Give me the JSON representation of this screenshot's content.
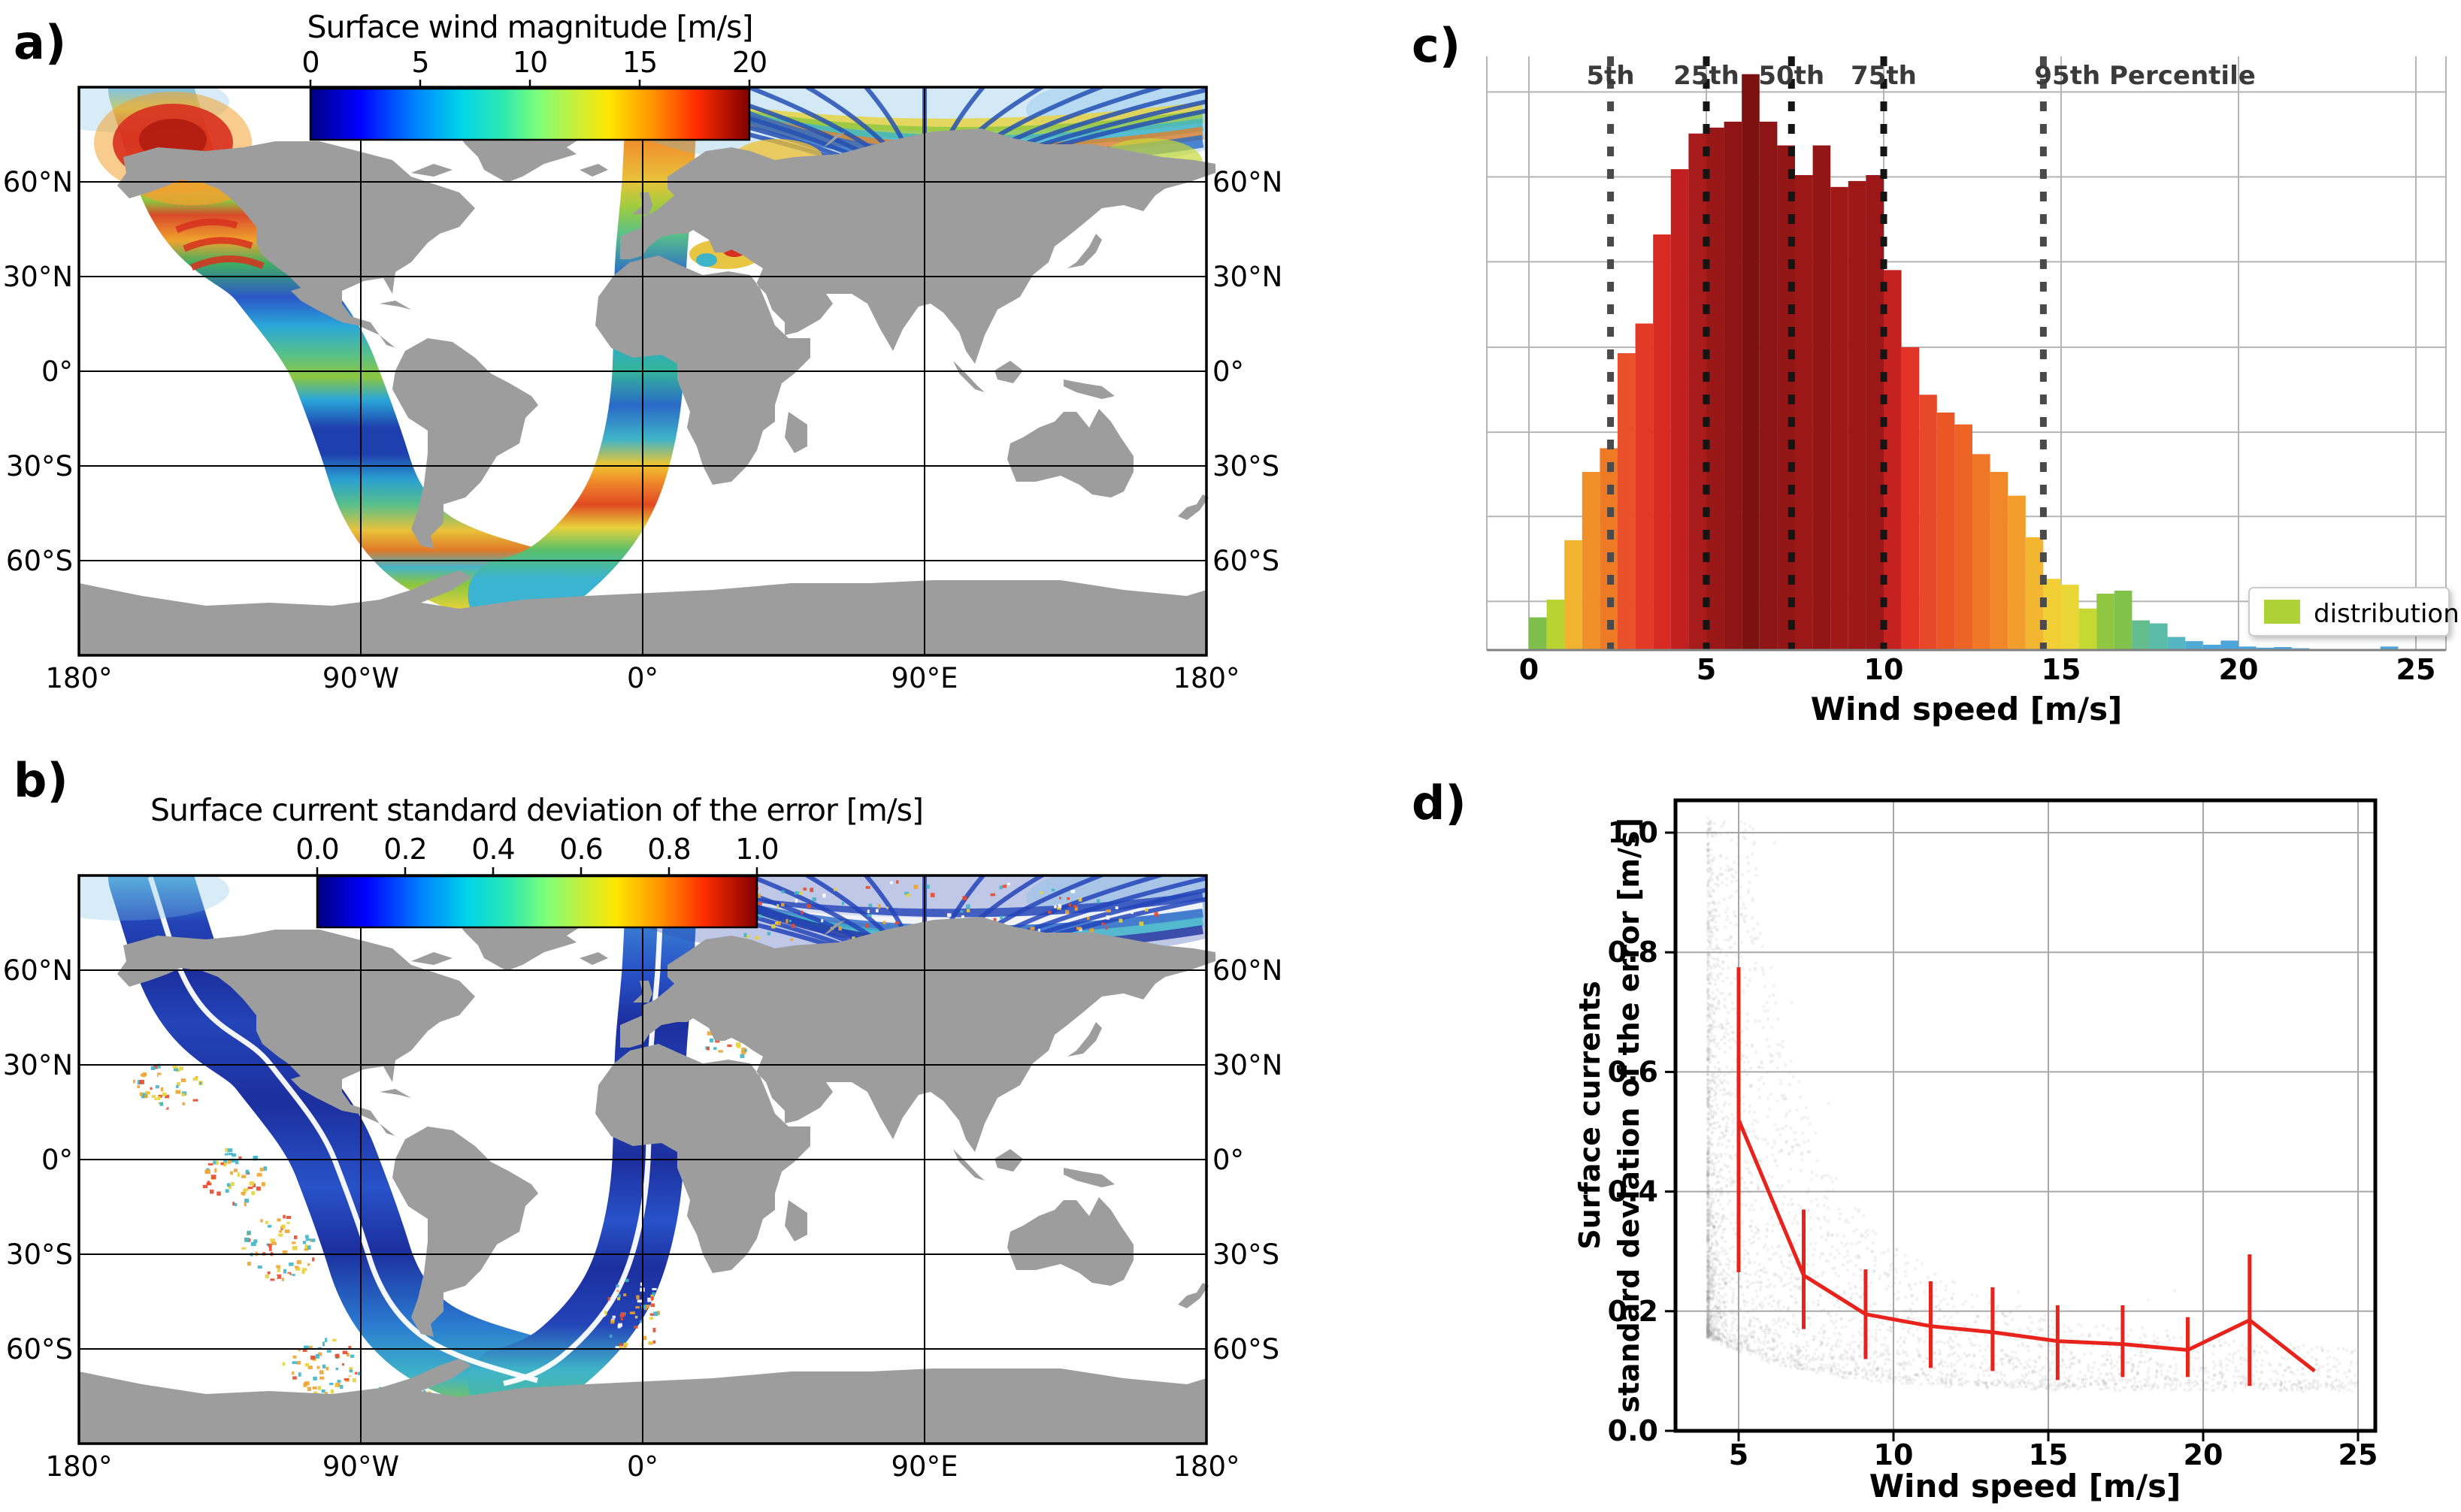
{
  "colors": {
    "land": "#9d9d9d",
    "map_grid": "#000000",
    "panel_grid": "#b5b5b5",
    "axis_gray": "#808080",
    "red_line": "#e8231c",
    "scatter": "#9a9a9a",
    "legend_swatch": "#aed136"
  },
  "panel_a": {
    "letter": "a)",
    "title": "Surface wind magnitude [m/s]",
    "colorbar_ticks": [
      "0",
      "5",
      "10",
      "15",
      "20"
    ],
    "lat_labels": [
      "60°N",
      "30°N",
      "0°",
      "30°S",
      "60°S"
    ],
    "lon_labels": [
      "180°",
      "90°W",
      "0°",
      "90°E",
      "180°"
    ]
  },
  "panel_b": {
    "letter": "b)",
    "title": "Surface current standard deviation of the error [m/s]",
    "colorbar_ticks": [
      "0.0",
      "0.2",
      "0.4",
      "0.6",
      "0.8",
      "1.0"
    ],
    "lat_labels": [
      "60°N",
      "30°N",
      "0°",
      "30°S",
      "60°S"
    ],
    "lon_labels": [
      "180°",
      "90°W",
      "0°",
      "90°E",
      "180°"
    ]
  },
  "panel_c": {
    "letter": "c)",
    "xlabel": "Wind speed [m/s]",
    "xtick_labels": [
      "0",
      "5",
      "10",
      "15",
      "20",
      "25"
    ],
    "legend_label": "distribution"
  },
  "panel_d": {
    "letter": "d)",
    "xlabel": "Wind speed [m/s]",
    "ylabel_line1": "Surface currents",
    "ylabel_line2": "standard deviation of the error [m/s]",
    "xtick_labels": [
      "5",
      "10",
      "15",
      "20",
      "25"
    ],
    "ytick_labels": [
      "0.0",
      "0.2",
      "0.4",
      "0.6",
      "0.8",
      "1.0"
    ]
  },
  "chart_data": [
    {
      "id": "panel_a_map",
      "type": "heatmap",
      "title": "Surface wind magnitude [m/s]",
      "units": "m/s",
      "colormap": "jet",
      "colorbar_range": [
        0,
        20
      ],
      "colorbar_ticks": [
        0,
        5,
        10,
        15,
        20
      ],
      "projection": "equirectangular",
      "lat_ticks": [
        "60°N",
        "30°N",
        "0°",
        "30°S",
        "60°S"
      ],
      "lon_ticks": [
        "180°",
        "90°W",
        "0°",
        "90°E",
        "180°"
      ],
      "description": "World map with gray continents; two satellite swaths (Pacific descending, Atlantic ascending) colored by surface wind magnitude, plus fan-shaped Arctic coverage and a colored patch over the Black/Caspian Sea region."
    },
    {
      "id": "panel_b_map",
      "type": "heatmap",
      "title": "Surface current standard deviation of the error [m/s]",
      "units": "m/s",
      "colormap": "jet",
      "colorbar_range": [
        0.0,
        1.0
      ],
      "colorbar_ticks": [
        0.0,
        0.2,
        0.4,
        0.6,
        0.8,
        1.0
      ],
      "projection": "equirectangular",
      "lat_ticks": [
        "60°N",
        "30°N",
        "0°",
        "30°S",
        "60°S"
      ],
      "lon_ticks": [
        "180°",
        "90°W",
        "0°",
        "90°E",
        "180°"
      ],
      "description": "Same swath geometry as panel a but values are mostly low (dark blue) with a bright white line along each swath center and red/orange speckle patches near coasts."
    },
    {
      "id": "panel_c_hist",
      "type": "bar",
      "xlabel": "Wind speed [m/s]",
      "xticks": [
        0,
        5,
        10,
        15,
        20,
        25
      ],
      "xlim": [
        -1.2,
        25.8
      ],
      "bin_width": 0.5,
      "y_axis": "unlabeled; bar heights below are fractions of plot height",
      "legend": [
        "distribution"
      ],
      "legend_position": "lower right",
      "percentiles": [
        {
          "label": "5th",
          "x": 2.3,
          "color": "#4a4a4a",
          "anchor": "middle"
        },
        {
          "label": "25th",
          "x": 5.0,
          "color": "#151515",
          "anchor": "middle"
        },
        {
          "label": "50th",
          "x": 7.4,
          "color": "#151515",
          "anchor": "middle"
        },
        {
          "label": "75th",
          "x": 10.0,
          "color": "#151515",
          "anchor": "middle"
        },
        {
          "label": "95th Percentile",
          "x": 14.5,
          "color": "#4a4a4a",
          "anchor": "start"
        }
      ],
      "bars": [
        [
          0.25,
          0.055,
          "#7dbf4a"
        ],
        [
          0.75,
          0.085,
          "#b9d333"
        ],
        [
          1.25,
          0.185,
          "#f2b42f"
        ],
        [
          1.75,
          0.3,
          "#f19029"
        ],
        [
          2.25,
          0.34,
          "#ef7a25"
        ],
        [
          2.75,
          0.5,
          "#e8512a"
        ],
        [
          3.25,
          0.55,
          "#e23a26"
        ],
        [
          3.75,
          0.7,
          "#d62a22"
        ],
        [
          4.25,
          0.81,
          "#c22020"
        ],
        [
          4.75,
          0.87,
          "#a81b1b"
        ],
        [
          5.25,
          0.88,
          "#991717"
        ],
        [
          5.75,
          0.89,
          "#8e1515"
        ],
        [
          6.25,
          0.97,
          "#7c1111"
        ],
        [
          6.75,
          0.89,
          "#8e1515"
        ],
        [
          7.25,
          0.85,
          "#921616"
        ],
        [
          7.75,
          0.8,
          "#9c1717"
        ],
        [
          8.25,
          0.85,
          "#921616"
        ],
        [
          8.75,
          0.78,
          "#a11818"
        ],
        [
          9.25,
          0.79,
          "#9e1818"
        ],
        [
          9.75,
          0.8,
          "#9c1717"
        ],
        [
          10.25,
          0.64,
          "#c62121"
        ],
        [
          10.75,
          0.51,
          "#e13326"
        ],
        [
          11.25,
          0.43,
          "#e74827"
        ],
        [
          11.75,
          0.4,
          "#eb5627"
        ],
        [
          12.25,
          0.38,
          "#ee6326"
        ],
        [
          12.75,
          0.33,
          "#f07727"
        ],
        [
          13.25,
          0.3,
          "#f18728"
        ],
        [
          13.75,
          0.26,
          "#f29d2c"
        ],
        [
          14.25,
          0.19,
          "#f3b630"
        ],
        [
          14.75,
          0.12,
          "#f3cf36"
        ],
        [
          15.25,
          0.11,
          "#ead737"
        ],
        [
          15.75,
          0.07,
          "#c6d834"
        ],
        [
          16.25,
          0.095,
          "#8fc740"
        ],
        [
          16.75,
          0.1,
          "#80c24a"
        ],
        [
          17.25,
          0.05,
          "#64bd8f"
        ],
        [
          17.75,
          0.045,
          "#59bba8"
        ],
        [
          18.25,
          0.022,
          "#55b5c2"
        ],
        [
          18.75,
          0.015,
          "#51a9d5"
        ],
        [
          19.25,
          0.009,
          "#4ea5dc"
        ],
        [
          19.75,
          0.016,
          "#4ea5dc"
        ],
        [
          20.25,
          0.006,
          "#4ea5dc"
        ],
        [
          20.75,
          0.004,
          "#4ea5dc"
        ],
        [
          21.25,
          0.005,
          "#4ea5dc"
        ],
        [
          21.75,
          0.003,
          "#4ea5dc"
        ],
        [
          24.25,
          0.006,
          "#4ea5dc"
        ]
      ]
    },
    {
      "id": "panel_d_scatter",
      "type": "scatter+line",
      "xlabel": "Wind speed [m/s]",
      "ylabel": "Surface currents standard deviation of the error [m/s]",
      "xlim": [
        3.0,
        25.6
      ],
      "ylim": [
        0.0,
        1.054
      ],
      "xticks": [
        5,
        10,
        15,
        20,
        25
      ],
      "yticks": [
        0.0,
        0.2,
        0.4,
        0.6,
        0.8,
        1.0
      ],
      "line_color": "#e8231c",
      "line_points": [
        [
          5.0,
          0.52,
          0.265,
          0.775
        ],
        [
          7.1,
          0.26,
          0.17,
          0.37
        ],
        [
          9.1,
          0.195,
          0.12,
          0.27
        ],
        [
          11.2,
          0.175,
          0.105,
          0.25
        ],
        [
          13.2,
          0.165,
          0.1,
          0.24
        ],
        [
          15.3,
          0.15,
          0.085,
          0.21
        ],
        [
          17.4,
          0.145,
          0.09,
          0.21
        ],
        [
          19.5,
          0.135,
          0.09,
          0.19
        ],
        [
          21.5,
          0.185,
          0.075,
          0.295
        ],
        [
          23.6,
          0.1,
          null,
          null
        ]
      ],
      "scatter": {
        "count": 4000,
        "color": "#9a9a9a",
        "opacity": 0.13,
        "x_range": [
          4.0,
          25.4
        ],
        "description": "Dense gray point cloud: full 0.1-1.0 spread at wind speeds 4-6 m/s narrowing to a band near 0.08-0.3 above 8 m/s, thinning toward 25 m/s."
      }
    }
  ]
}
